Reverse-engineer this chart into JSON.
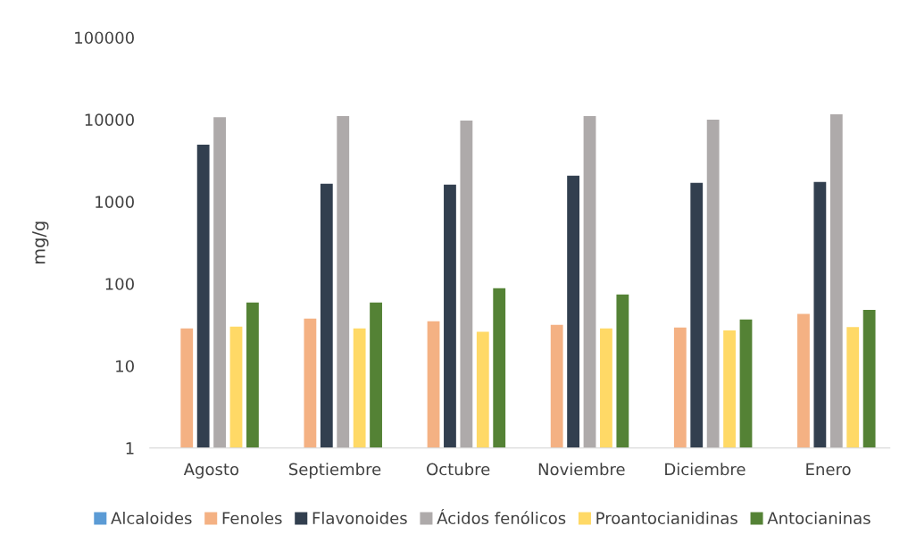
{
  "chart_data": {
    "type": "bar",
    "ylabel": "mg/g",
    "log": true,
    "categories": [
      "Agosto",
      "Septiembre",
      "Octubre",
      "Noviembre",
      "Diciembre",
      "Enero"
    ],
    "ylim": [
      1,
      100000
    ],
    "yticks": [
      1,
      10,
      100,
      1000,
      10000,
      100000
    ],
    "grid": false,
    "legend": "bottom",
    "series": [
      {
        "name": "Alcaloides",
        "color": "#5b9bd5",
        "values": [
          null,
          null,
          null,
          null,
          null,
          null
        ]
      },
      {
        "name": "Fenoles",
        "color": "#f4b183",
        "values": [
          28.6,
          37.7,
          35,
          31.6,
          29.3,
          43
        ]
      },
      {
        "name": "Flavonoides",
        "color": "#323f4f",
        "values": [
          4960,
          1650,
          1610,
          2070,
          1690,
          1740
        ]
      },
      {
        "name": "Ácidos fenólicos",
        "color": "#aeaaaa",
        "values": [
          10700,
          11000,
          9700,
          11000,
          10000,
          11600
        ]
      },
      {
        "name": "Proantocianidinas",
        "color": "#ffd966",
        "values": [
          30,
          28.6,
          26,
          28.6,
          27,
          29.7
        ]
      },
      {
        "name": "Antocianinas",
        "color": "#548235",
        "values": [
          59,
          59,
          88,
          74,
          36.7,
          48
        ]
      }
    ]
  }
}
